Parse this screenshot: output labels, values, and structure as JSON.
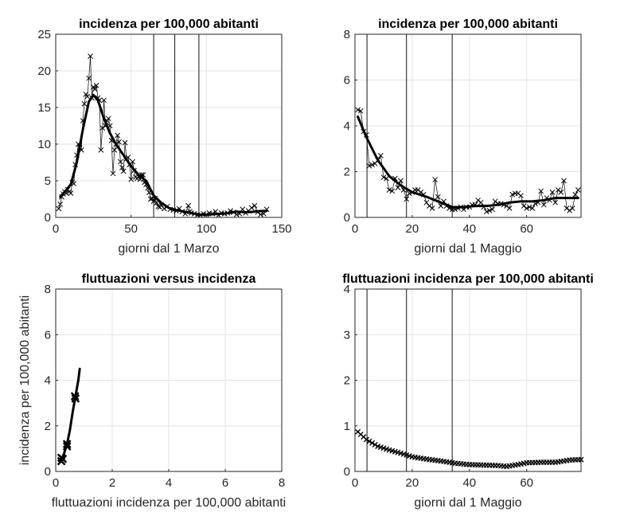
{
  "chart_data": [
    {
      "type": "line",
      "title": "incidenza per 100,000 abitanti",
      "xlabel": "giorni dal 1 Marzo",
      "ylabel": "",
      "xlim": [
        0,
        150
      ],
      "ylim": [
        0,
        25
      ],
      "xticks": [
        "0",
        "50",
        "100",
        "150"
      ],
      "xtick_values": [
        0,
        50,
        100,
        150
      ],
      "yticks": [
        "0",
        "5",
        "10",
        "15",
        "20",
        "25"
      ],
      "ytick_values": [
        0,
        5,
        10,
        15,
        20,
        25
      ],
      "grid": true,
      "vlines": [
        65,
        79,
        95
      ],
      "observed": [
        [
          2,
          1.2
        ],
        [
          3,
          1.8
        ],
        [
          4,
          2.8
        ],
        [
          5,
          3.2
        ],
        [
          6,
          3.5
        ],
        [
          7,
          3.3
        ],
        [
          8,
          3.8
        ],
        [
          9,
          3.5
        ],
        [
          10,
          3.3
        ],
        [
          11,
          4.8
        ],
        [
          12,
          4.6
        ],
        [
          13,
          7.2
        ],
        [
          14,
          8.5
        ],
        [
          15,
          10
        ],
        [
          16,
          9.5
        ],
        [
          17,
          9.2
        ],
        [
          18,
          13.2
        ],
        [
          19,
          15.5
        ],
        [
          20,
          16.8
        ],
        [
          21,
          16.5
        ],
        [
          22,
          19
        ],
        [
          23,
          22
        ],
        [
          24,
          16.3
        ],
        [
          25,
          17.8
        ],
        [
          26,
          17.5
        ],
        [
          27,
          18
        ],
        [
          28,
          16.3
        ],
        [
          29,
          16
        ],
        [
          30,
          9.2
        ],
        [
          31,
          12.2
        ],
        [
          32,
          16
        ],
        [
          33,
          12.5
        ],
        [
          34,
          13.2
        ],
        [
          35,
          13.5
        ],
        [
          36,
          12.5
        ],
        [
          37,
          10.5
        ],
        [
          38,
          6
        ],
        [
          39,
          9.2
        ],
        [
          40,
          10
        ],
        [
          41,
          11.2
        ],
        [
          42,
          10.3
        ],
        [
          43,
          7.6
        ],
        [
          44,
          6.8
        ],
        [
          45,
          6.3
        ],
        [
          46,
          10.2
        ],
        [
          47,
          8
        ],
        [
          48,
          8.2
        ],
        [
          49,
          7.2
        ],
        [
          50,
          5.2
        ],
        [
          51,
          7.6
        ],
        [
          52,
          6.4
        ],
        [
          53,
          5.5
        ],
        [
          54,
          5.3
        ],
        [
          55,
          5.6
        ],
        [
          56,
          5.2
        ],
        [
          57,
          5.8
        ],
        [
          58,
          5.8
        ],
        [
          59,
          4.8
        ],
        [
          60,
          4.5
        ],
        [
          61,
          4
        ],
        [
          62,
          3.4
        ],
        [
          63,
          2.5
        ],
        [
          64,
          2.6
        ],
        [
          65,
          2.2
        ],
        [
          66,
          2.6
        ],
        [
          67,
          2
        ],
        [
          68,
          1.5
        ],
        [
          69,
          1.4
        ],
        [
          70,
          1.7
        ],
        [
          72,
          1.2
        ],
        [
          74,
          1.5
        ],
        [
          76,
          1.1
        ],
        [
          78,
          1
        ],
        [
          80,
          0.9
        ],
        [
          82,
          1.2
        ],
        [
          84,
          0.8
        ],
        [
          86,
          0.5
        ],
        [
          88,
          1.6
        ],
        [
          89,
          0.8
        ],
        [
          90,
          0.6
        ],
        [
          92,
          0.5
        ],
        [
          94,
          0.3
        ],
        [
          96,
          0.3
        ],
        [
          98,
          0.5
        ],
        [
          100,
          0.4
        ],
        [
          102,
          0.6
        ],
        [
          104,
          0.5
        ],
        [
          106,
          0.8
        ],
        [
          108,
          0.3
        ],
        [
          110,
          0.6
        ],
        [
          112,
          0.5
        ],
        [
          114,
          0.6
        ],
        [
          116,
          0.9
        ],
        [
          118,
          0.7
        ],
        [
          120,
          0.4
        ],
        [
          122,
          0.5
        ],
        [
          124,
          1.1
        ],
        [
          126,
          0.6
        ],
        [
          128,
          0.9
        ],
        [
          130,
          1.3
        ],
        [
          132,
          1.6
        ],
        [
          134,
          0.7
        ],
        [
          136,
          0.4
        ],
        [
          138,
          0.5
        ],
        [
          140,
          1.1
        ]
      ],
      "smooth": [
        [
          3,
          2.8
        ],
        [
          6,
          3.5
        ],
        [
          10,
          4.5
        ],
        [
          14,
          7.5
        ],
        [
          18,
          12
        ],
        [
          22,
          15.8
        ],
        [
          25,
          16.7
        ],
        [
          28,
          16
        ],
        [
          32,
          13.5
        ],
        [
          36,
          11.5
        ],
        [
          40,
          10
        ],
        [
          45,
          8.5
        ],
        [
          50,
          7
        ],
        [
          55,
          5.8
        ],
        [
          60,
          5
        ],
        [
          65,
          3
        ],
        [
          70,
          2
        ],
        [
          75,
          1.3
        ],
        [
          80,
          1
        ],
        [
          85,
          0.8
        ],
        [
          90,
          0.6
        ],
        [
          95,
          0.4
        ],
        [
          100,
          0.35
        ],
        [
          105,
          0.45
        ],
        [
          110,
          0.5
        ],
        [
          115,
          0.6
        ],
        [
          120,
          0.8
        ],
        [
          125,
          0.7
        ],
        [
          130,
          0.75
        ],
        [
          135,
          0.85
        ],
        [
          140,
          0.9
        ]
      ]
    },
    {
      "type": "line",
      "title": "incidenza per 100,000 abitanti",
      "xlabel": "giorni dal 1 Maggio",
      "ylabel": "",
      "xlim": [
        0,
        79
      ],
      "ylim": [
        0,
        8
      ],
      "xticks": [
        "0",
        "20",
        "40",
        "60"
      ],
      "xtick_values": [
        0,
        20,
        40,
        60
      ],
      "yticks": [
        "0",
        "2",
        "4",
        "6",
        "8"
      ],
      "ytick_values": [
        0,
        2,
        4,
        6,
        8
      ],
      "grid": true,
      "vlines": [
        4.2,
        18,
        34
      ],
      "observed": [
        [
          1,
          4.7
        ],
        [
          2,
          4.65
        ],
        [
          3,
          3.75
        ],
        [
          4,
          3.6
        ],
        [
          5,
          2.25
        ],
        [
          6,
          2.3
        ],
        [
          7,
          2.35
        ],
        [
          8,
          2.5
        ],
        [
          9,
          2.7
        ],
        [
          10,
          1.75
        ],
        [
          11,
          1.7
        ],
        [
          12,
          1.2
        ],
        [
          13,
          1.15
        ],
        [
          14,
          1.7
        ],
        [
          15,
          1.3
        ],
        [
          16,
          1.6
        ],
        [
          17,
          1.2
        ],
        [
          18,
          0.8
        ],
        [
          19,
          1.05
        ],
        [
          20,
          1.1
        ],
        [
          21,
          1.2
        ],
        [
          22,
          1.2
        ],
        [
          23,
          1.1
        ],
        [
          24,
          1.0
        ],
        [
          25,
          0.65
        ],
        [
          26,
          0.5
        ],
        [
          27,
          0.4
        ],
        [
          28,
          1.65
        ],
        [
          29,
          0.9
        ],
        [
          30,
          0.5
        ],
        [
          31,
          0.7
        ],
        [
          32,
          0.5
        ],
        [
          33,
          0.4
        ],
        [
          34,
          0.35
        ],
        [
          35,
          0.35
        ],
        [
          36,
          0.4
        ],
        [
          37,
          0.45
        ],
        [
          38,
          0.35
        ],
        [
          39,
          0.45
        ],
        [
          40,
          0.45
        ],
        [
          41,
          0.55
        ],
        [
          42,
          0.55
        ],
        [
          43,
          0.75
        ],
        [
          44,
          0.65
        ],
        [
          45,
          0.45
        ],
        [
          46,
          0.25
        ],
        [
          47,
          0.3
        ],
        [
          48,
          0.35
        ],
        [
          49,
          0.7
        ],
        [
          50,
          0.6
        ],
        [
          51,
          0.6
        ],
        [
          52,
          0.55
        ],
        [
          53,
          0.5
        ],
        [
          54,
          0.4
        ],
        [
          55,
          1.0
        ],
        [
          56,
          1.05
        ],
        [
          57,
          1.05
        ],
        [
          58,
          0.95
        ],
        [
          59,
          0.5
        ],
        [
          60,
          0.4
        ],
        [
          61,
          0.45
        ],
        [
          62,
          0.4
        ],
        [
          63,
          0.6
        ],
        [
          64,
          0.65
        ],
        [
          65,
          1.15
        ],
        [
          66,
          0.55
        ],
        [
          67,
          0.85
        ],
        [
          68,
          0.75
        ],
        [
          69,
          1.1
        ],
        [
          70,
          0.65
        ],
        [
          71,
          1.2
        ],
        [
          72,
          1.1
        ],
        [
          73,
          1.6
        ],
        [
          74,
          0.4
        ],
        [
          75,
          0.3
        ],
        [
          76,
          0.4
        ],
        [
          77,
          1.0
        ],
        [
          78,
          1.2
        ]
      ],
      "smooth": [
        [
          1,
          4.4
        ],
        [
          4,
          3.5
        ],
        [
          8,
          2.5
        ],
        [
          12,
          1.8
        ],
        [
          16,
          1.4
        ],
        [
          20,
          1.1
        ],
        [
          25,
          0.9
        ],
        [
          30,
          0.65
        ],
        [
          34,
          0.45
        ],
        [
          38,
          0.45
        ],
        [
          42,
          0.5
        ],
        [
          46,
          0.5
        ],
        [
          50,
          0.55
        ],
        [
          54,
          0.65
        ],
        [
          58,
          0.7
        ],
        [
          62,
          0.7
        ],
        [
          66,
          0.75
        ],
        [
          70,
          0.85
        ],
        [
          74,
          0.85
        ],
        [
          78,
          0.85
        ]
      ]
    },
    {
      "type": "line",
      "title": "fluttuazioni versus incidenza",
      "xlabel": "fluttuazioni incidenza per 100,000 abitanti",
      "ylabel": "incidenza per 100,000 abitanti",
      "xlim": [
        0,
        8
      ],
      "ylim": [
        0,
        8
      ],
      "xticks": [
        "0",
        "2",
        "4",
        "6",
        "8"
      ],
      "xtick_values": [
        0,
        2,
        4,
        6,
        8
      ],
      "yticks": [
        "0",
        "2",
        "4",
        "6",
        "8"
      ],
      "ytick_values": [
        0,
        2,
        4,
        6,
        8
      ],
      "grid": true,
      "vlines": [],
      "observed": [
        [
          0.2,
          0.6
        ],
        [
          0.2,
          0.45
        ],
        [
          0.25,
          0.55
        ],
        [
          0.4,
          1.1
        ],
        [
          0.4,
          1.2
        ],
        [
          0.68,
          3.3
        ],
        [
          0.7,
          3.2
        ]
      ],
      "bold_markers": true,
      "smooth": [
        [
          0.2,
          0.5
        ],
        [
          0.3,
          0.8
        ],
        [
          0.4,
          1.2
        ],
        [
          0.5,
          1.8
        ],
        [
          0.6,
          2.6
        ],
        [
          0.7,
          3.3
        ],
        [
          0.8,
          4.0
        ],
        [
          0.85,
          4.5
        ]
      ]
    },
    {
      "type": "line",
      "title": "fluttuazioni incidenza per 100,000 abitanti",
      "xlabel": "giorni dal 1 Maggio",
      "ylabel": "",
      "xlim": [
        0,
        79
      ],
      "ylim": [
        0,
        4
      ],
      "xticks": [
        "0",
        "20",
        "40",
        "60"
      ],
      "xtick_values": [
        0,
        20,
        40,
        60
      ],
      "yticks": [
        "0",
        "1",
        "2",
        "3",
        "4"
      ],
      "ytick_values": [
        0,
        1,
        2,
        3,
        4
      ],
      "grid": true,
      "vlines": [
        4.2,
        18,
        34
      ],
      "observed": [
        [
          1,
          0.87
        ],
        [
          4,
          0.7
        ],
        [
          8,
          0.55
        ],
        [
          12,
          0.47
        ],
        [
          16,
          0.4
        ],
        [
          20,
          0.32
        ],
        [
          25,
          0.27
        ],
        [
          30,
          0.23
        ],
        [
          35,
          0.18
        ],
        [
          40,
          0.15
        ],
        [
          45,
          0.14
        ],
        [
          50,
          0.13
        ],
        [
          53,
          0.11
        ],
        [
          57,
          0.15
        ],
        [
          60,
          0.19
        ],
        [
          65,
          0.2
        ],
        [
          70,
          0.2
        ],
        [
          75,
          0.25
        ],
        [
          79,
          0.26
        ]
      ],
      "dense_markers": true,
      "smooth": []
    }
  ]
}
